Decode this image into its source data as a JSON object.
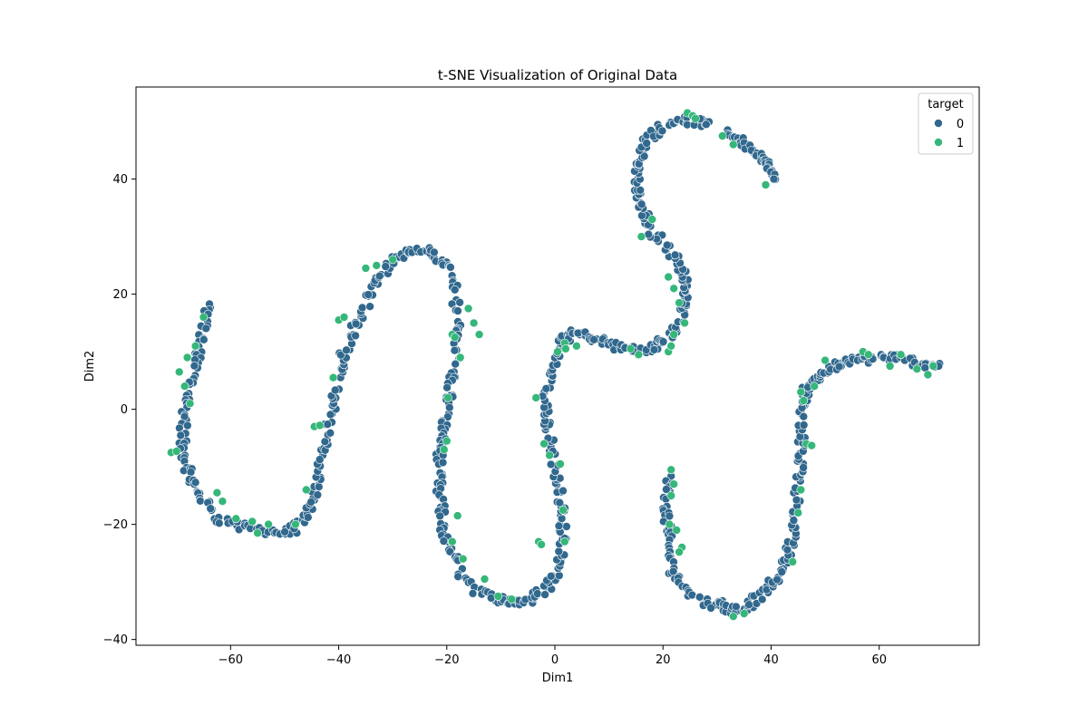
{
  "chart_data": {
    "type": "scatter",
    "title": "t-SNE Visualization of Original Data",
    "xlabel": "Dim1",
    "ylabel": "Dim2",
    "xlim": [
      -77.5,
      78.5
    ],
    "ylim": [
      -41,
      56
    ],
    "xticks": [
      -60,
      -40,
      -20,
      0,
      20,
      40,
      60
    ],
    "yticks": [
      -40,
      -20,
      0,
      20,
      40
    ],
    "xtick_labels": [
      "−60",
      "−40",
      "−20",
      "0",
      "20",
      "40",
      "60"
    ],
    "ytick_labels": [
      "−40",
      "−20",
      "0",
      "20",
      "40"
    ],
    "grid": false,
    "legend": {
      "title": "target",
      "placement": "top-right",
      "entries": [
        "0",
        "1"
      ]
    },
    "colors": {
      "0": "#31688e",
      "1": "#35b779"
    },
    "series": [
      {
        "name": "0",
        "path": [
          [
            -64,
            18
          ],
          [
            -65,
            14
          ],
          [
            -66,
            10
          ],
          [
            -67,
            6
          ],
          [
            -68,
            2
          ],
          [
            -68.5,
            -2
          ],
          [
            -69,
            -6
          ],
          [
            -68,
            -10
          ],
          [
            -67,
            -13
          ],
          [
            -65,
            -16
          ],
          [
            -62,
            -19
          ],
          [
            -58,
            -20.5
          ],
          [
            -54,
            -21
          ],
          [
            -50,
            -21.5
          ],
          [
            -47,
            -20
          ],
          [
            -45,
            -17
          ],
          [
            -44,
            -13
          ],
          [
            -43,
            -8
          ],
          [
            -42,
            -4
          ],
          [
            -41,
            1
          ],
          [
            -40,
            6
          ],
          [
            -39,
            10
          ],
          [
            -37,
            14
          ],
          [
            -35,
            18
          ],
          [
            -33,
            22
          ],
          [
            -31,
            25
          ],
          [
            -28,
            27
          ],
          [
            -25,
            27.5
          ],
          [
            -22,
            27
          ],
          [
            -20,
            25
          ],
          [
            -18.5,
            21
          ],
          [
            -18,
            16
          ],
          [
            -18,
            11
          ],
          [
            -19,
            6
          ],
          [
            -19.5,
            2
          ],
          [
            -20.5,
            -2
          ],
          [
            -21,
            -6
          ],
          [
            -21.5,
            -10
          ],
          [
            -21.5,
            -14
          ],
          [
            -21,
            -18
          ],
          [
            -20.5,
            -22
          ],
          [
            -19,
            -25
          ],
          [
            -17,
            -29
          ],
          [
            -14,
            -32
          ],
          [
            -10,
            -33
          ],
          [
            -7,
            -33.5
          ],
          [
            -4,
            -33
          ],
          [
            -1.5,
            -31
          ],
          [
            0.5,
            -28
          ],
          [
            1.5,
            -24
          ],
          [
            1.5,
            -20
          ],
          [
            1,
            -16
          ],
          [
            0.5,
            -12
          ],
          [
            -0.5,
            -8
          ],
          [
            -1,
            -4
          ],
          [
            -1.5,
            0
          ],
          [
            -1.5,
            4
          ],
          [
            -0.5,
            8
          ],
          [
            1,
            11
          ],
          [
            2.5,
            13
          ],
          [
            5,
            13
          ],
          [
            8,
            12
          ],
          [
            11,
            11
          ],
          [
            14,
            10.5
          ],
          [
            17,
            10
          ],
          [
            19,
            11
          ],
          [
            21,
            12.5
          ],
          [
            23,
            15
          ],
          [
            24,
            19
          ],
          [
            24,
            22
          ],
          [
            23,
            25
          ],
          [
            21,
            28
          ],
          [
            18,
            31
          ],
          [
            16.5,
            34
          ],
          [
            15.5,
            37
          ],
          [
            15,
            40
          ],
          [
            15.5,
            43
          ],
          [
            16.5,
            46
          ],
          [
            18.5,
            48
          ],
          [
            21,
            49.5
          ],
          [
            23.5,
            50.5
          ],
          [
            26,
            50
          ],
          [
            28,
            49.5
          ]
        ],
        "path_b": [
          [
            32,
            48
          ],
          [
            34,
            47
          ],
          [
            36,
            45.5
          ],
          [
            38,
            44
          ],
          [
            39.5,
            42
          ],
          [
            40.5,
            40
          ]
        ],
        "path_c": [
          [
            21,
            -11
          ],
          [
            20.8,
            -15
          ],
          [
            20.7,
            -19
          ],
          [
            20.9,
            -23
          ],
          [
            21.5,
            -27
          ],
          [
            23,
            -30
          ],
          [
            25,
            -32
          ],
          [
            28,
            -33.5
          ],
          [
            31,
            -34
          ],
          [
            33,
            -35
          ],
          [
            35,
            -34.5
          ],
          [
            37,
            -33
          ],
          [
            39.5,
            -31
          ],
          [
            41.5,
            -29
          ],
          [
            43,
            -26
          ],
          [
            44,
            -22
          ],
          [
            44.5,
            -18
          ],
          [
            45,
            -14
          ],
          [
            45.2,
            -10
          ],
          [
            45.5,
            -6
          ],
          [
            45.7,
            -2
          ],
          [
            46,
            2
          ],
          [
            47,
            4
          ],
          [
            49,
            5.5
          ],
          [
            51,
            7
          ],
          [
            53,
            8
          ],
          [
            56,
            8.5
          ],
          [
            59,
            9
          ],
          [
            62,
            9
          ],
          [
            65,
            8.5
          ],
          [
            68,
            8
          ],
          [
            71,
            7.5
          ]
        ]
      },
      {
        "name": "1",
        "points": [
          [
            -71,
            -7.5
          ],
          [
            -70,
            -7.3
          ],
          [
            -69.5,
            6.5
          ],
          [
            -68.5,
            4
          ],
          [
            -68,
            9
          ],
          [
            -67.5,
            1
          ],
          [
            -66.5,
            11
          ],
          [
            -65,
            16
          ],
          [
            -62.5,
            -14.5
          ],
          [
            -61.5,
            -16
          ],
          [
            -59,
            -19
          ],
          [
            -56,
            -19.5
          ],
          [
            -55,
            -21.5
          ],
          [
            -53,
            -20
          ],
          [
            -48,
            -20
          ],
          [
            -46,
            -14
          ],
          [
            -44.5,
            -3
          ],
          [
            -43.5,
            -2.8
          ],
          [
            -41,
            5.5
          ],
          [
            -40,
            15.5
          ],
          [
            -39,
            16
          ],
          [
            -35,
            24.5
          ],
          [
            -33,
            25
          ],
          [
            -30,
            26
          ],
          [
            -20.5,
            -7
          ],
          [
            -20,
            -5.5
          ],
          [
            -19.8,
            2
          ],
          [
            -19,
            13
          ],
          [
            -18.5,
            12.5
          ],
          [
            -17.5,
            9
          ],
          [
            -16,
            17.5
          ],
          [
            -15,
            15
          ],
          [
            -14,
            13
          ],
          [
            -18,
            -18.5
          ],
          [
            -19,
            -23
          ],
          [
            -17,
            -26
          ],
          [
            -13,
            -29.5
          ],
          [
            -10.5,
            -32.5
          ],
          [
            -8,
            -33
          ],
          [
            -3,
            -23
          ],
          [
            -2.5,
            -23.5
          ],
          [
            -3.5,
            2
          ],
          [
            -2,
            -6
          ],
          [
            -1,
            -8
          ],
          [
            1,
            -9.5
          ],
          [
            1.5,
            -17.5
          ],
          [
            1.8,
            -23
          ],
          [
            0.5,
            10
          ],
          [
            1.8,
            11.5
          ],
          [
            2,
            10.5
          ],
          [
            4,
            11
          ],
          [
            14,
            10.5
          ],
          [
            15.5,
            9.5
          ],
          [
            16,
            30
          ],
          [
            18,
            33
          ],
          [
            21,
            23
          ],
          [
            22,
            21
          ],
          [
            23,
            18.5
          ],
          [
            24,
            15
          ],
          [
            21,
            10
          ],
          [
            21.5,
            11
          ],
          [
            22,
            13
          ],
          [
            24.5,
            51.5
          ],
          [
            25.5,
            51
          ],
          [
            26,
            50.5
          ],
          [
            31,
            47.5
          ],
          [
            33,
            46
          ],
          [
            39,
            39
          ],
          [
            21.5,
            -10.5
          ],
          [
            22,
            -13
          ],
          [
            21.5,
            -15
          ],
          [
            21.2,
            -20
          ],
          [
            22.5,
            -21
          ],
          [
            23.5,
            -24
          ],
          [
            23,
            -24.8
          ],
          [
            33,
            -36
          ],
          [
            35,
            -35.5
          ],
          [
            44,
            -26.5
          ],
          [
            45,
            -18
          ],
          [
            45.5,
            -14
          ],
          [
            46,
            1.5
          ],
          [
            45.5,
            3
          ],
          [
            46.5,
            -6
          ],
          [
            47.5,
            -6.3
          ],
          [
            48,
            4
          ],
          [
            50,
            8.5
          ],
          [
            57,
            10
          ],
          [
            58,
            9.5
          ],
          [
            62,
            7.5
          ],
          [
            64,
            9.5
          ],
          [
            67,
            7
          ],
          [
            69,
            6
          ],
          [
            70,
            7.5
          ]
        ]
      }
    ]
  }
}
